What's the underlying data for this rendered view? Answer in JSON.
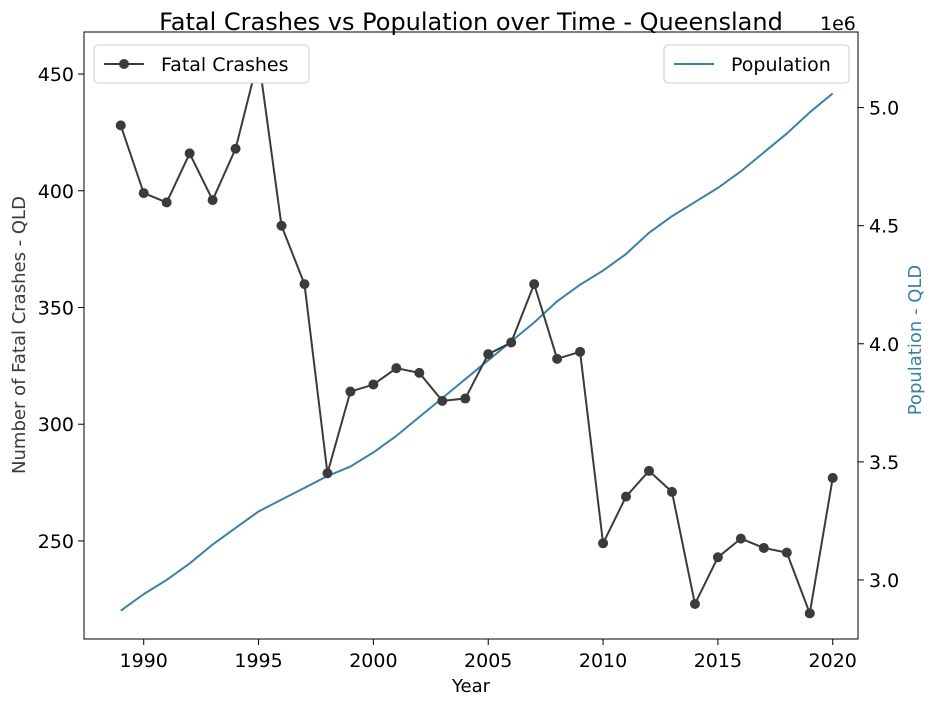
{
  "chart_data": {
    "type": "line",
    "title": "Fatal Crashes vs Population over Time - Queensland",
    "xlabel": "Year",
    "ylabel_left": "Number of Fatal Crashes - QLD",
    "ylabel_right": "Population - QLD",
    "right_axis_offset_label": "1e6",
    "xlim": [
      1987.4,
      2021.1
    ],
    "ylim_left": [
      208,
      468
    ],
    "ylim_right": [
      2.75,
      5.32
    ],
    "x_ticks": [
      1990,
      1995,
      2000,
      2005,
      2010,
      2015,
      2020
    ],
    "y_ticks_left": [
      250,
      300,
      350,
      400,
      450
    ],
    "y_ticks_right": [
      3.0,
      3.5,
      4.0,
      4.5,
      5.0
    ],
    "grid": false,
    "legend_left": "top-left",
    "legend_right": "top-right",
    "series": [
      {
        "name": "Fatal Crashes",
        "axis": "left",
        "color": "#3b3b3b",
        "marker": "circle",
        "x": [
          1989,
          1990,
          1991,
          1992,
          1993,
          1994,
          1995,
          1996,
          1997,
          1998,
          1999,
          2000,
          2001,
          2002,
          2003,
          2004,
          2005,
          2006,
          2007,
          2008,
          2009,
          2010,
          2011,
          2012,
          2013,
          2014,
          2015,
          2016,
          2017,
          2018,
          2019,
          2020
        ],
        "values": [
          428,
          399,
          395,
          416,
          396,
          418,
          457,
          385,
          360,
          279,
          314,
          317,
          324,
          322,
          310,
          311,
          330,
          335,
          360,
          328,
          331,
          249,
          269,
          280,
          271,
          223,
          243,
          251,
          247,
          245,
          219,
          277
        ]
      },
      {
        "name": "Population",
        "axis": "right",
        "color": "#3a81a8",
        "marker": "none",
        "x": [
          1989,
          1990,
          1991,
          1992,
          1993,
          1994,
          1995,
          1996,
          1997,
          1998,
          1999,
          2000,
          2001,
          2002,
          2003,
          2004,
          2005,
          2006,
          2007,
          2008,
          2009,
          2010,
          2011,
          2012,
          2013,
          2014,
          2015,
          2016,
          2017,
          2018,
          2019,
          2020
        ],
        "values": [
          2.87,
          2.94,
          3.0,
          3.07,
          3.15,
          3.22,
          3.29,
          3.34,
          3.39,
          3.44,
          3.48,
          3.54,
          3.61,
          3.69,
          3.77,
          3.85,
          3.93,
          4.01,
          4.09,
          4.18,
          4.25,
          4.31,
          4.38,
          4.47,
          4.54,
          4.6,
          4.66,
          4.73,
          4.81,
          4.89,
          4.98,
          5.06
        ]
      }
    ]
  }
}
